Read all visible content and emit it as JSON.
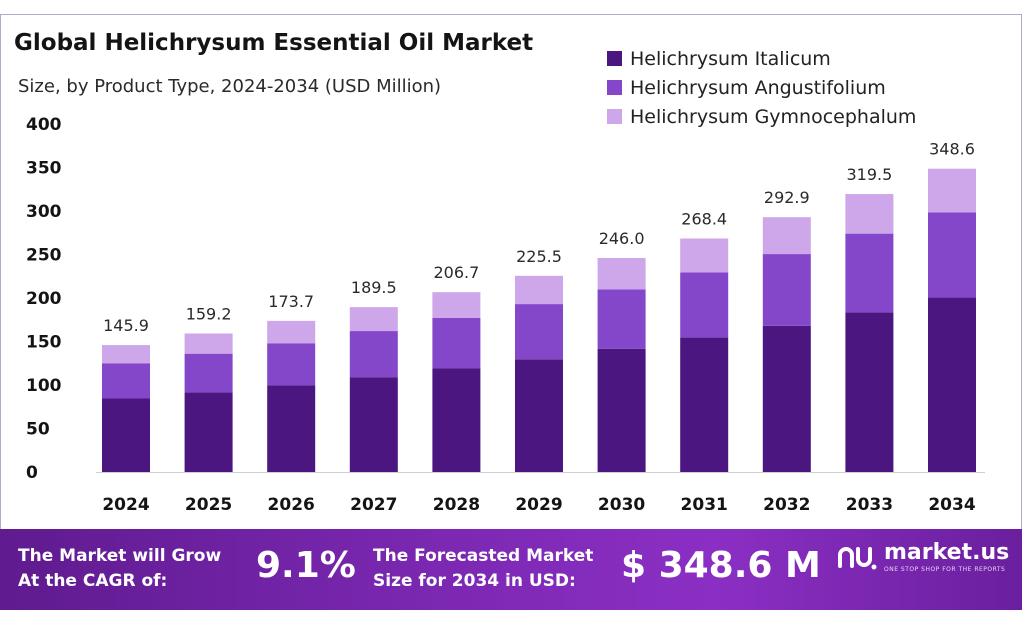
{
  "header": {
    "title": "Global Helichrysum Essential Oil Market",
    "subtitle": "Size, by Product Type, 2024-2034 (USD Million)"
  },
  "chart_data": {
    "type": "bar",
    "stacked": true,
    "categories": [
      "2024",
      "2025",
      "2026",
      "2027",
      "2028",
      "2029",
      "2030",
      "2031",
      "2032",
      "2033",
      "2034"
    ],
    "series": [
      {
        "name": "Helichrysum Italicum",
        "color": "#4b1680",
        "values": [
          84.5,
          91.5,
          99.5,
          109.0,
          119.0,
          129.5,
          141.5,
          154.5,
          168.0,
          183.5,
          200.5
        ]
      },
      {
        "name": "Helichrysum Angustifolium",
        "color": "#8447c9",
        "values": [
          40.5,
          44.5,
          48.5,
          53.0,
          58.0,
          63.5,
          68.5,
          75.0,
          82.5,
          90.5,
          98.0
        ]
      },
      {
        "name": "Helichrysum Gymnocephalum",
        "color": "#cda7e9",
        "values": [
          20.9,
          23.2,
          25.7,
          27.5,
          29.7,
          32.5,
          36.0,
          38.9,
          42.4,
          45.5,
          50.1
        ]
      }
    ],
    "totals": [
      "145.9",
      "159.2",
      "173.7",
      "189.5",
      "206.7",
      "225.5",
      "246.0",
      "268.4",
      "292.9",
      "319.5",
      "348.6"
    ],
    "yticks": [
      "0",
      "50",
      "100",
      "150",
      "200",
      "250",
      "300",
      "350",
      "400"
    ],
    "ylim": [
      0,
      400
    ],
    "grid": false,
    "legend_position": "top-right"
  },
  "footer": {
    "cagr_label_1": "The Market will Grow",
    "cagr_label_2": "At the CAGR of:",
    "cagr_value": "9.1%",
    "forecast_label_1": "The Forecasted Market",
    "forecast_label_2": "Size for 2034 in USD:",
    "forecast_value": "$ 348.6 M",
    "brand_name": "market.us",
    "brand_tagline": "ONE STOP SHOP FOR THE REPORTS",
    "background_color": "#7a27b0"
  }
}
